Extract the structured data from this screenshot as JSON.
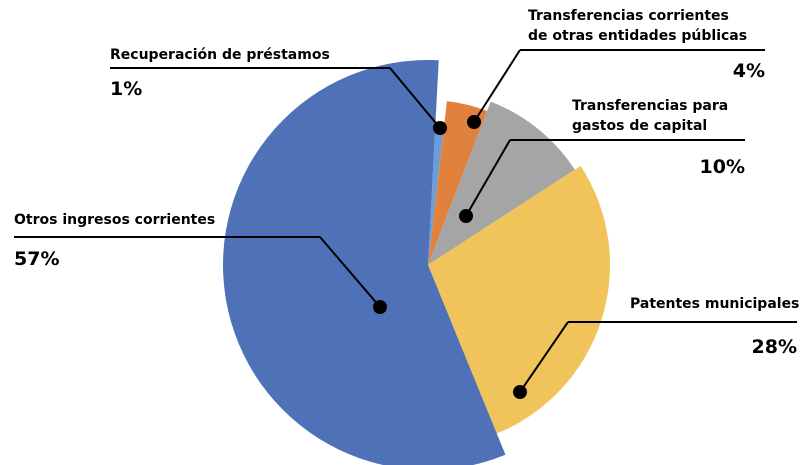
{
  "chart_data": {
    "type": "pie",
    "categories": [
      "Recuperación de préstamos",
      "Transferencias corrientes\nde otras entidades públicas",
      "Transferencias para\ngastos de capital",
      "Patentes municipales",
      "Otros ingresos corrientes"
    ],
    "values": [
      1,
      4,
      10,
      28,
      57
    ],
    "value_labels": [
      "1%",
      "4%",
      "10%",
      "28%",
      "57%"
    ],
    "colors": [
      "#6a9ed6",
      "#e0813d",
      "#a5a5a5",
      "#f0c45a",
      "#4e71b8"
    ]
  }
}
